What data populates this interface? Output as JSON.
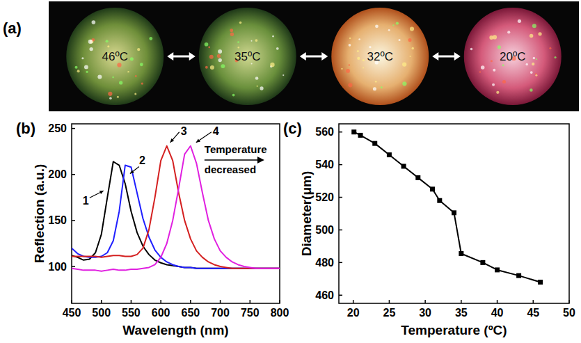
{
  "photos": {
    "letter": "(a)",
    "labels": [
      "46ºC",
      "35ºC",
      "32ºC",
      "20ºC"
    ]
  },
  "chart_data": [
    {
      "type": "line",
      "title": "(b)",
      "x_label": "Wavelength (nm)",
      "y_label": "Reflection (a.u.)",
      "x": [
        450,
        460,
        470,
        480,
        490,
        500,
        510,
        520,
        530,
        540,
        550,
        560,
        570,
        580,
        590,
        600,
        610,
        620,
        630,
        640,
        650,
        660,
        670,
        680,
        690,
        700,
        710,
        720,
        730,
        740,
        750,
        760,
        770,
        780,
        790,
        800
      ],
      "series": [
        {
          "name": "1",
          "color": "#000000",
          "values": [
            112,
            110,
            107,
            108,
            115,
            135,
            175,
            214,
            210,
            190,
            160,
            137,
            122,
            113,
            107,
            104,
            102,
            101,
            100,
            99,
            99,
            98,
            98,
            98,
            98,
            98,
            98,
            98,
            98,
            98,
            98,
            98,
            98,
            98,
            98,
            98
          ]
        },
        {
          "name": "2",
          "color": "#2020ff",
          "values": [
            120,
            114,
            111,
            110,
            110,
            111,
            115,
            128,
            160,
            210,
            208,
            180,
            152,
            132,
            118,
            110,
            105,
            102,
            100,
            99,
            99,
            98,
            98,
            98,
            98,
            98,
            98,
            98,
            98,
            98,
            98,
            98,
            98,
            98,
            98,
            98
          ]
        },
        {
          "name": "3",
          "color": "#d42020",
          "values": [
            111,
            111,
            111,
            111,
            111,
            110,
            111,
            112,
            112,
            111,
            111,
            113,
            120,
            140,
            175,
            215,
            231,
            215,
            180,
            150,
            130,
            117,
            110,
            105,
            102,
            100,
            99,
            98,
            98,
            98,
            98,
            98,
            98,
            98,
            98,
            98
          ]
        },
        {
          "name": "4",
          "color": "#e020e0",
          "values": [
            98,
            97,
            96,
            96,
            96,
            95,
            96,
            97,
            96,
            96,
            97,
            97,
            98,
            99,
            102,
            110,
            125,
            150,
            185,
            222,
            231,
            212,
            180,
            150,
            130,
            117,
            110,
            105,
            102,
            100,
            99,
            98,
            98,
            98,
            98,
            98
          ]
        }
      ],
      "xlim": [
        450,
        800
      ],
      "xticks": [
        450,
        500,
        550,
        600,
        650,
        700,
        750,
        800
      ],
      "ylim": [
        60,
        255
      ],
      "yticks": [
        100,
        150,
        200,
        250
      ],
      "annotations": [
        "Temperature decreased"
      ]
    },
    {
      "type": "line",
      "title": "(c)",
      "x_label": "Temperature (ºC)",
      "y_label": "Diameter(μm)",
      "x": [
        20.1,
        21,
        23,
        25,
        27,
        29,
        31,
        32,
        34,
        35,
        38,
        40,
        43,
        46
      ],
      "series": [
        {
          "color": "#000000",
          "marker": "square",
          "values": [
            560,
            558,
            553,
            546,
            539,
            532,
            525,
            518,
            510.5,
            485.5,
            480,
            475.5,
            472,
            468
          ]
        }
      ],
      "xlim": [
        18,
        50
      ],
      "xticks": [
        20,
        25,
        30,
        35,
        40,
        45,
        50
      ],
      "ylim": [
        455,
        565
      ],
      "yticks": [
        460,
        480,
        500,
        520,
        540,
        560
      ]
    }
  ]
}
